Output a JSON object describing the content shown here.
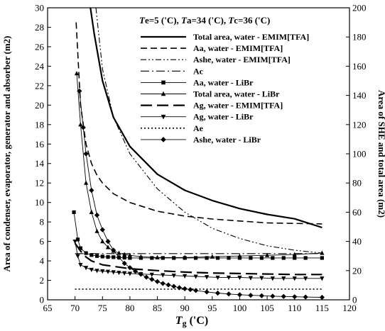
{
  "chart_data": {
    "type": "line",
    "title": "",
    "conditions": {
      "parts": [
        {
          "text": "T",
          "italic": true
        },
        {
          "text": "e=5 ('C), ",
          "italic": false
        },
        {
          "text": "T",
          "italic": true
        },
        {
          "text": "a=34 ('C), ",
          "italic": false
        },
        {
          "text": "T",
          "italic": true
        },
        {
          "text": "c=36 ('C)",
          "italic": false
        }
      ]
    },
    "xlabel": {
      "main": "T",
      "sub": "g",
      "unit": " ('C)"
    },
    "ylabel_left": "Area of condenser, evaporator, generator and absorber (m2)",
    "ylabel_right": "Area of SHE and total area (m2)",
    "xlim": [
      65,
      120
    ],
    "ylim_left": [
      0,
      30
    ],
    "ylim_right": [
      0,
      200
    ],
    "xticks": [
      65,
      70,
      75,
      80,
      85,
      90,
      95,
      100,
      105,
      110,
      115,
      120
    ],
    "yticks_left": [
      0,
      2,
      4,
      6,
      8,
      10,
      12,
      14,
      16,
      18,
      20,
      22,
      24,
      26,
      28,
      30
    ],
    "yticks_right": [
      0,
      20,
      40,
      60,
      80,
      100,
      120,
      140,
      160,
      180,
      200
    ],
    "series": [
      {
        "name": "Total area, water - EMIM[TFA]",
        "axis": "right",
        "style": "solid-thick",
        "marker": "none",
        "x": [
          72.8,
          73.5,
          75,
          77,
          80,
          85,
          90,
          95,
          100,
          105,
          110,
          115
        ],
        "y": [
          200,
          182,
          150,
          125,
          105,
          86,
          75,
          68,
          62.5,
          58.5,
          55.5,
          49.5
        ]
      },
      {
        "name": "Aa, water - EMIM[TFA]",
        "axis": "left",
        "style": "dashed",
        "marker": "none",
        "x": [
          70.2,
          71,
          72,
          73,
          74,
          75,
          77,
          80,
          85,
          90,
          95,
          100,
          105,
          110,
          115
        ],
        "y": [
          28.5,
          20,
          16,
          14,
          12.8,
          12,
          10.9,
          10,
          9.1,
          8.6,
          8.3,
          8.1,
          7.9,
          7.85,
          7.8
        ]
      },
      {
        "name": "Ashe, water - EMIM[TFA]",
        "axis": "right",
        "style": "dash-dot-dot",
        "marker": "none",
        "x": [
          73.8,
          75,
          77,
          80,
          85,
          90,
          95,
          100,
          105,
          110,
          115
        ],
        "y": [
          200,
          158,
          125,
          100,
          76,
          60,
          49,
          42,
          37,
          34,
          32
        ]
      },
      {
        "name": "Ac",
        "axis": "left",
        "style": "dash-dot",
        "marker": "none",
        "x": [
          70,
          115
        ],
        "y": [
          4.75,
          4.75
        ]
      },
      {
        "name": "Aa, water - LiBr",
        "axis": "left",
        "style": "thin",
        "marker": "square",
        "x": [
          69.8,
          70.5,
          71,
          72,
          73,
          74,
          75,
          76,
          77,
          78,
          79,
          80,
          82,
          84,
          86,
          88,
          90,
          92,
          94,
          96,
          98,
          100,
          102,
          104,
          106,
          108,
          110,
          112,
          115
        ],
        "y": [
          9.0,
          6.2,
          5.3,
          4.8,
          4.6,
          4.5,
          4.45,
          4.4,
          4.38,
          4.35,
          4.33,
          4.3,
          4.3,
          4.3,
          4.3,
          4.3,
          4.3,
          4.3,
          4.3,
          4.3,
          4.3,
          4.3,
          4.3,
          4.3,
          4.3,
          4.3,
          4.3,
          4.3,
          4.3
        ]
      },
      {
        "name": "Total area, water - LiBr",
        "axis": "right",
        "style": "thin",
        "marker": "triangle-up",
        "x": [
          70.3,
          71,
          72,
          73,
          74,
          75,
          76,
          77,
          78,
          79,
          80,
          82,
          85,
          90,
          95,
          100,
          105,
          110,
          115
        ],
        "y": [
          155,
          120,
          80,
          60,
          47,
          40,
          36,
          33.5,
          32,
          31,
          30.5,
          29.5,
          29,
          29,
          29.5,
          30,
          30.5,
          31,
          32
        ]
      },
      {
        "name": "Ag, water - EMIM[TFA]",
        "axis": "left",
        "style": "long-dash-thick",
        "marker": "none",
        "x": [
          70,
          71,
          72,
          73,
          75,
          80,
          85,
          90,
          95,
          100,
          105,
          110,
          115
        ],
        "y": [
          5.8,
          5.0,
          4.4,
          4.0,
          3.6,
          3.2,
          3.0,
          2.85,
          2.75,
          2.7,
          2.65,
          2.6,
          2.6
        ]
      },
      {
        "name": "Ag, water - LiBr",
        "axis": "left",
        "style": "thin",
        "marker": "triangle-down",
        "x": [
          70,
          70.5,
          71,
          72,
          73,
          74,
          75,
          76,
          77,
          78,
          79,
          80,
          82,
          84,
          86,
          88,
          90,
          92,
          94,
          96,
          98,
          100,
          102,
          104,
          106,
          108,
          110,
          112,
          115
        ],
        "y": [
          6.0,
          4.5,
          3.6,
          3.3,
          3.1,
          3.0,
          2.95,
          2.9,
          2.85,
          2.8,
          2.75,
          2.7,
          2.65,
          2.6,
          2.55,
          2.5,
          2.45,
          2.4,
          2.35,
          2.3,
          2.3,
          2.3,
          2.25,
          2.25,
          2.2,
          2.2,
          2.2,
          2.2,
          2.2
        ]
      },
      {
        "name": "Ae",
        "axis": "left",
        "style": "dotted",
        "marker": "none",
        "x": [
          70,
          115
        ],
        "y": [
          1.1,
          1.1
        ]
      },
      {
        "name": "Ashe, water - LiBr",
        "axis": "right",
        "style": "thin",
        "marker": "diamond",
        "x": [
          70.8,
          71.5,
          72,
          73,
          74,
          75,
          76,
          77,
          78,
          79,
          80,
          81,
          82,
          83,
          84,
          85,
          86,
          87,
          88,
          89,
          90,
          91,
          92,
          94,
          96,
          98,
          100,
          102,
          104,
          106,
          108,
          110,
          112,
          115
        ],
        "y": [
          143,
          118,
          100,
          75,
          58,
          48,
          40,
          34,
          29,
          25,
          22,
          19.5,
          17.5,
          15.5,
          14,
          12.5,
          11.2,
          10.2,
          9.2,
          8.3,
          7.6,
          7.0,
          6.4,
          5.4,
          4.6,
          4.0,
          3.5,
          3.1,
          2.8,
          2.5,
          2.3,
          2.1,
          1.9,
          1.7
        ]
      }
    ]
  }
}
